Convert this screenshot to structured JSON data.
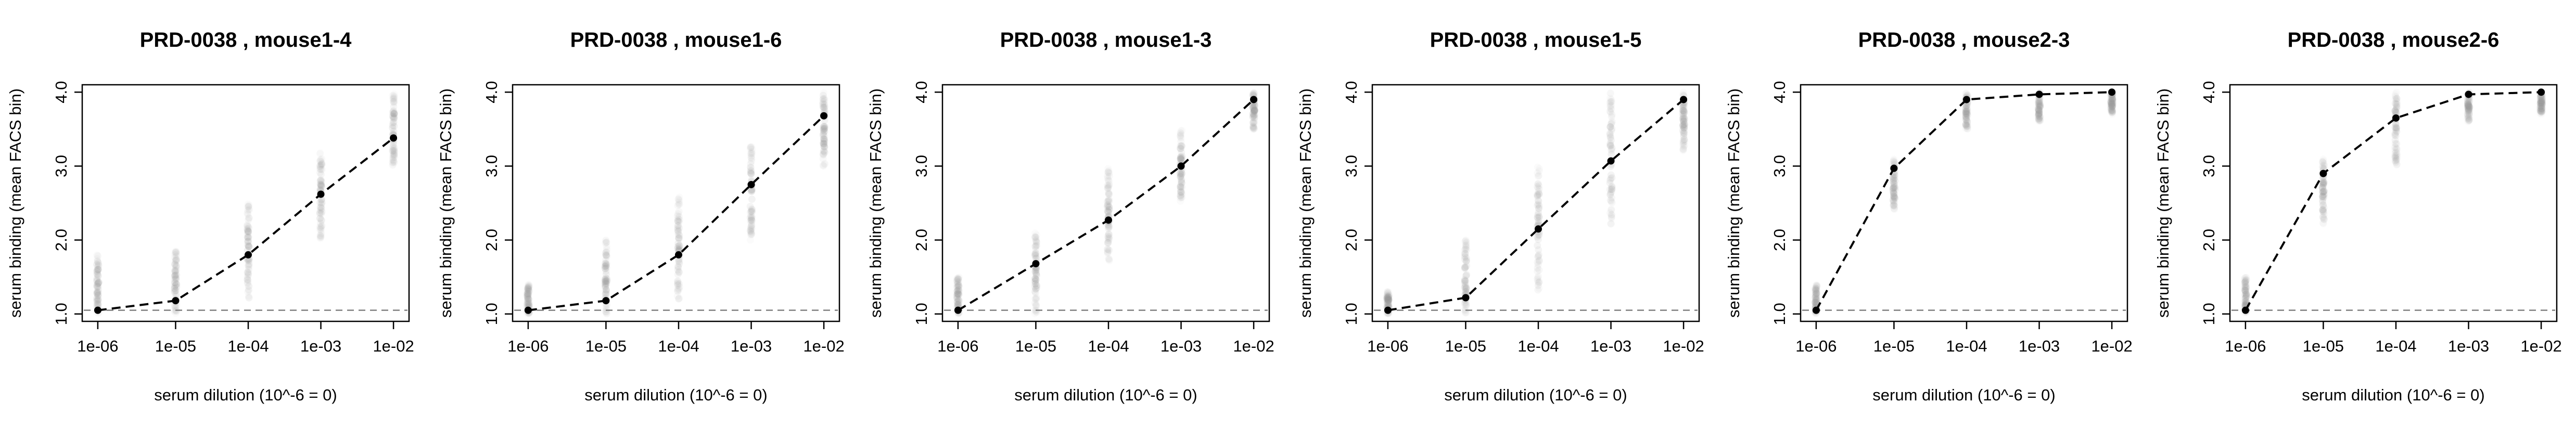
{
  "figure": {
    "xlabel": "serum dilution (10^-6 = 0)",
    "ylabel": "serum binding (mean FACS bin)",
    "x_tick_labels": [
      "1e-06",
      "1e-05",
      "1e-04",
      "1e-03",
      "1e-02"
    ],
    "y_tick_labels": [
      "1.0",
      "2.0",
      "3.0",
      "4.0"
    ],
    "colors": {
      "mean_line": "#000000",
      "baseline": "#808080",
      "cells": "#9a9a9a"
    }
  },
  "chart_data": [
    {
      "type": "scatter",
      "title": "PRD-0038 , mouse1-4",
      "xlabel": "serum dilution (10^-6 = 0)",
      "ylabel": "serum binding (mean FACS bin)",
      "x": [
        "1e-06",
        "1e-05",
        "1e-04",
        "1e-03",
        "1e-02"
      ],
      "xscale": "log",
      "ylim": [
        0.9,
        4.1
      ],
      "series": [
        {
          "values": [
            1.05,
            1.18,
            1.8,
            2.62,
            3.38
          ]
        }
      ],
      "baseline": 1.05,
      "cell_ranges": [
        [
          1.0,
          1.8
        ],
        [
          1.0,
          1.85
        ],
        [
          1.2,
          2.5
        ],
        [
          2.0,
          3.2
        ],
        [
          3.0,
          4.0
        ]
      ]
    },
    {
      "type": "scatter",
      "title": "PRD-0038 , mouse1-6",
      "xlabel": "serum dilution (10^-6 = 0)",
      "ylabel": "serum binding (mean FACS bin)",
      "x": [
        "1e-06",
        "1e-05",
        "1e-04",
        "1e-03",
        "1e-02"
      ],
      "xscale": "log",
      "ylim": [
        0.9,
        4.1
      ],
      "series": [
        {
          "values": [
            1.05,
            1.18,
            1.8,
            2.75,
            3.68
          ]
        }
      ],
      "baseline": 1.05,
      "cell_ranges": [
        [
          1.0,
          1.4
        ],
        [
          1.0,
          2.0
        ],
        [
          1.2,
          2.6
        ],
        [
          2.0,
          3.3
        ],
        [
          3.0,
          4.0
        ]
      ]
    },
    {
      "type": "scatter",
      "title": "PRD-0038 , mouse1-3",
      "xlabel": "serum dilution (10^-6 = 0)",
      "ylabel": "serum binding (mean FACS bin)",
      "x": [
        "1e-06",
        "1e-05",
        "1e-04",
        "1e-03",
        "1e-02"
      ],
      "xscale": "log",
      "ylim": [
        0.9,
        4.1
      ],
      "series": [
        {
          "values": [
            1.05,
            1.68,
            2.27,
            3.0,
            3.9
          ]
        }
      ],
      "baseline": 1.05,
      "cell_ranges": [
        [
          1.0,
          1.5
        ],
        [
          1.0,
          2.1
        ],
        [
          1.7,
          3.0
        ],
        [
          2.5,
          3.5
        ],
        [
          3.5,
          4.0
        ]
      ]
    },
    {
      "type": "scatter",
      "title": "PRD-0038 , mouse1-5",
      "xlabel": "serum dilution (10^-6 = 0)",
      "ylabel": "serum binding (mean FACS bin)",
      "x": [
        "1e-06",
        "1e-05",
        "1e-04",
        "1e-03",
        "1e-02"
      ],
      "xscale": "log",
      "ylim": [
        0.9,
        4.1
      ],
      "series": [
        {
          "values": [
            1.05,
            1.22,
            2.15,
            3.07,
            3.9
          ]
        }
      ],
      "baseline": 1.05,
      "cell_ranges": [
        [
          1.0,
          1.3
        ],
        [
          1.0,
          2.0
        ],
        [
          1.3,
          3.0
        ],
        [
          2.2,
          4.0
        ],
        [
          3.2,
          4.0
        ]
      ]
    },
    {
      "type": "scatter",
      "title": "PRD-0038 , mouse2-3",
      "xlabel": "serum dilution (10^-6 = 0)",
      "ylabel": "serum binding (mean FACS bin)",
      "x": [
        "1e-06",
        "1e-05",
        "1e-04",
        "1e-03",
        "1e-02"
      ],
      "xscale": "log",
      "ylim": [
        0.9,
        4.1
      ],
      "series": [
        {
          "values": [
            1.05,
            2.97,
            3.9,
            3.97,
            4.0
          ]
        }
      ],
      "baseline": 1.05,
      "cell_ranges": [
        [
          1.0,
          1.4
        ],
        [
          2.4,
          3.1
        ],
        [
          3.5,
          4.0
        ],
        [
          3.6,
          4.0
        ],
        [
          3.7,
          4.0
        ]
      ]
    },
    {
      "type": "scatter",
      "title": "PRD-0038 , mouse2-6",
      "xlabel": "serum dilution (10^-6 = 0)",
      "ylabel": "serum binding (mean FACS bin)",
      "x": [
        "1e-06",
        "1e-05",
        "1e-04",
        "1e-03",
        "1e-02"
      ],
      "xscale": "log",
      "ylim": [
        0.9,
        4.1
      ],
      "series": [
        {
          "values": [
            1.05,
            2.9,
            3.65,
            3.97,
            4.0
          ]
        }
      ],
      "baseline": 1.05,
      "cell_ranges": [
        [
          1.0,
          1.5
        ],
        [
          2.2,
          3.1
        ],
        [
          3.0,
          4.0
        ],
        [
          3.6,
          4.0
        ],
        [
          3.7,
          4.0
        ]
      ]
    }
  ]
}
